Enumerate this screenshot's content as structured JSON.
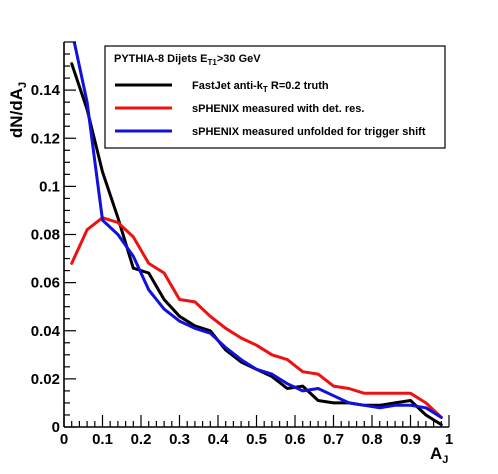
{
  "chart_data": {
    "type": "line",
    "xlabel": "A",
    "xlabel_sub": "J",
    "ylabel": "dN/dA",
    "ylabel_sub": "J",
    "xlim": [
      0,
      1
    ],
    "ylim": [
      0,
      0.16
    ],
    "x_ticks": [
      0,
      0.1,
      0.2,
      0.3,
      0.4,
      0.5,
      0.6,
      0.7,
      0.8,
      0.9,
      1
    ],
    "x_tick_labels": [
      "0",
      "0.1",
      "0.2",
      "0.3",
      "0.4",
      "0.5",
      "0.6",
      "0.7",
      "0.8",
      "0.9",
      "1"
    ],
    "y_ticks": [
      0,
      0.02,
      0.04,
      0.06,
      0.08,
      0.1,
      0.12,
      0.14
    ],
    "y_tick_labels": [
      "0",
      "0.02",
      "0.04",
      "0.06",
      "0.08",
      "0.1",
      "0.12",
      "0.14"
    ],
    "legend": {
      "title_main": "PYTHIA-8 Dijets E",
      "title_sub": "T1",
      "title_tail": ">30 GeV",
      "placement": "top-right"
    },
    "series": [
      {
        "name": "FastJet anti-k",
        "name_sub": "T",
        "name_tail": " R=0.2 truth",
        "color": "#000000",
        "x": [
          0.02,
          0.06,
          0.1,
          0.14,
          0.18,
          0.22,
          0.26,
          0.3,
          0.34,
          0.38,
          0.42,
          0.46,
          0.5,
          0.54,
          0.58,
          0.62,
          0.66,
          0.7,
          0.74,
          0.78,
          0.82,
          0.86,
          0.9,
          0.94,
          0.98
        ],
        "values": [
          0.151,
          0.132,
          0.106,
          0.087,
          0.066,
          0.064,
          0.053,
          0.046,
          0.042,
          0.04,
          0.032,
          0.027,
          0.024,
          0.021,
          0.016,
          0.017,
          0.011,
          0.01,
          0.01,
          0.009,
          0.009,
          0.01,
          0.011,
          0.005,
          0.001
        ]
      },
      {
        "name": "sPHENIX measured with det. res.",
        "color": "#ee1111",
        "x": [
          0.02,
          0.06,
          0.1,
          0.14,
          0.18,
          0.22,
          0.26,
          0.3,
          0.34,
          0.38,
          0.42,
          0.46,
          0.5,
          0.54,
          0.58,
          0.62,
          0.66,
          0.7,
          0.74,
          0.78,
          0.82,
          0.86,
          0.9,
          0.94,
          0.98
        ],
        "values": [
          0.068,
          0.082,
          0.087,
          0.085,
          0.079,
          0.068,
          0.064,
          0.053,
          0.052,
          0.046,
          0.041,
          0.037,
          0.034,
          0.03,
          0.028,
          0.023,
          0.022,
          0.017,
          0.016,
          0.014,
          0.014,
          0.014,
          0.014,
          0.01,
          0.004
        ]
      },
      {
        "name": "sPHENIX measured unfolded for trigger shift",
        "color": "#1111dd",
        "x": [
          0.02,
          0.06,
          0.1,
          0.14,
          0.18,
          0.22,
          0.26,
          0.3,
          0.34,
          0.38,
          0.42,
          0.46,
          0.5,
          0.54,
          0.58,
          0.62,
          0.66,
          0.7,
          0.74,
          0.78,
          0.82,
          0.86,
          0.9,
          0.94,
          0.98
        ],
        "values": [
          0.165,
          0.135,
          0.086,
          0.08,
          0.071,
          0.057,
          0.049,
          0.044,
          0.041,
          0.039,
          0.033,
          0.028,
          0.024,
          0.022,
          0.018,
          0.015,
          0.016,
          0.013,
          0.01,
          0.009,
          0.008,
          0.009,
          0.009,
          0.008,
          0.004
        ]
      }
    ]
  }
}
